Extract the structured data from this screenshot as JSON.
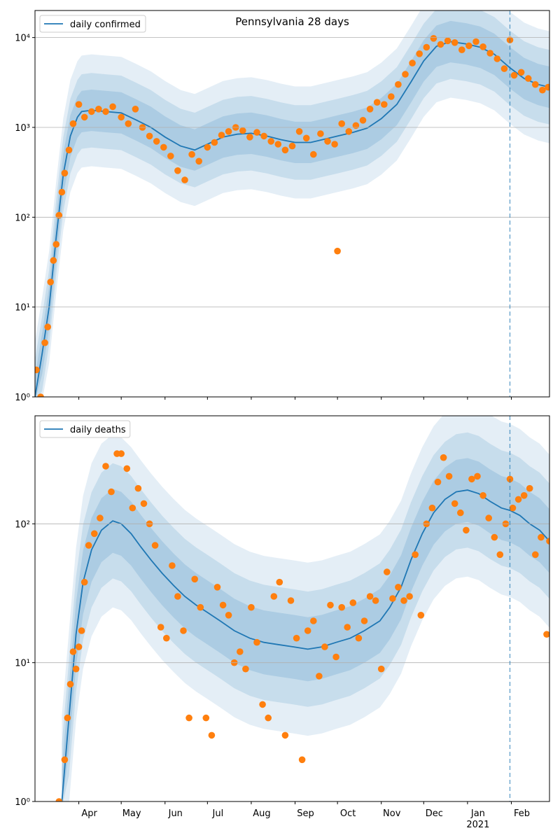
{
  "chart_data": [
    {
      "type": "scatter",
      "title": "Pennsylvania 28 days",
      "yscale": "log",
      "ylim": [
        1,
        20000
      ],
      "xlim": [
        "2020-03-01",
        "2021-02-28"
      ],
      "grid": true,
      "legend": {
        "placement": "top-left",
        "entries": [
          "daily confirmed"
        ]
      },
      "y_ticks": [
        {
          "value": 1,
          "label": "10⁰"
        },
        {
          "value": 10,
          "label": "10¹"
        },
        {
          "value": 100,
          "label": "10²"
        },
        {
          "value": 1000,
          "label": "10³"
        },
        {
          "value": 10000,
          "label": "10⁴"
        }
      ],
      "forecast_start": "2021-01-31",
      "series": [
        {
          "name": "daily confirmed",
          "kind": "line",
          "color": "#1f77b4",
          "x": [
            "2020-03-01",
            "2020-03-06",
            "2020-03-11",
            "2020-03-16",
            "2020-03-21",
            "2020-03-26",
            "2020-03-31",
            "2020-04-03",
            "2020-04-10",
            "2020-04-20",
            "2020-05-01",
            "2020-05-12",
            "2020-05-22",
            "2020-06-01",
            "2020-06-12",
            "2020-06-22",
            "2020-07-01",
            "2020-07-12",
            "2020-07-22",
            "2020-08-01",
            "2020-08-12",
            "2020-08-22",
            "2020-09-01",
            "2020-09-12",
            "2020-09-22",
            "2020-10-01",
            "2020-10-12",
            "2020-10-22",
            "2020-11-01",
            "2020-11-12",
            "2020-11-22",
            "2020-12-01",
            "2020-12-10",
            "2020-12-20",
            "2020-12-31",
            "2021-01-10",
            "2021-01-20",
            "2021-01-31",
            "2021-02-10",
            "2021-02-20",
            "2021-02-28"
          ],
          "values": [
            1,
            3,
            10,
            60,
            300,
            800,
            1300,
            1500,
            1550,
            1500,
            1450,
            1200,
            1000,
            780,
            620,
            560,
            650,
            780,
            840,
            860,
            800,
            730,
            680,
            680,
            740,
            800,
            880,
            980,
            1250,
            1800,
            3200,
            5500,
            8000,
            9000,
            8500,
            7800,
            6500,
            4600,
            3500,
            3000,
            2800
          ]
        },
        {
          "name": "daily confirmed (observed)",
          "kind": "points",
          "color": "#ff7f0e",
          "x": [
            "2020-03-02",
            "2020-03-05",
            "2020-03-08",
            "2020-03-10",
            "2020-03-12",
            "2020-03-14",
            "2020-03-16",
            "2020-03-18",
            "2020-03-20",
            "2020-03-22",
            "2020-03-25",
            "2020-03-28",
            "2020-04-01",
            "2020-04-05",
            "2020-04-10",
            "2020-04-15",
            "2020-04-20",
            "2020-04-25",
            "2020-05-01",
            "2020-05-06",
            "2020-05-11",
            "2020-05-16",
            "2020-05-21",
            "2020-05-26",
            "2020-05-31",
            "2020-06-05",
            "2020-06-10",
            "2020-06-15",
            "2020-06-20",
            "2020-06-25",
            "2020-07-01",
            "2020-07-06",
            "2020-07-11",
            "2020-07-16",
            "2020-07-21",
            "2020-07-26",
            "2020-07-31",
            "2020-08-05",
            "2020-08-10",
            "2020-08-15",
            "2020-08-20",
            "2020-08-25",
            "2020-08-30",
            "2020-09-04",
            "2020-09-09",
            "2020-09-14",
            "2020-09-19",
            "2020-09-24",
            "2020-09-29",
            "2020-10-01",
            "2020-10-04",
            "2020-10-09",
            "2020-10-14",
            "2020-10-19",
            "2020-10-24",
            "2020-10-29",
            "2020-11-03",
            "2020-11-08",
            "2020-11-13",
            "2020-11-18",
            "2020-11-23",
            "2020-11-28",
            "2020-12-03",
            "2020-12-08",
            "2020-12-13",
            "2020-12-18",
            "2020-12-23",
            "2020-12-28",
            "2021-01-02",
            "2021-01-07",
            "2021-01-12",
            "2021-01-17",
            "2021-01-22",
            "2021-01-27",
            "2021-01-31",
            "2021-02-03",
            "2021-02-08",
            "2021-02-13",
            "2021-02-18",
            "2021-02-23",
            "2021-02-27"
          ],
          "values": [
            2,
            1,
            4,
            6,
            19,
            33,
            50,
            105,
            190,
            310,
            560,
            1100,
            1800,
            1300,
            1500,
            1600,
            1500,
            1700,
            1300,
            1100,
            1600,
            1000,
            800,
            700,
            600,
            480,
            330,
            260,
            500,
            420,
            600,
            680,
            820,
            900,
            1000,
            920,
            780,
            880,
            800,
            700,
            650,
            560,
            620,
            900,
            760,
            500,
            850,
            700,
            650,
            42,
            1100,
            900,
            1050,
            1200,
            1600,
            1900,
            1800,
            2200,
            3000,
            3900,
            5200,
            6600,
            7800,
            9800,
            8400,
            9200,
            8800,
            7300,
            8100,
            9000,
            7900,
            6700,
            5800,
            4500,
            9400,
            3800,
            4100,
            3500,
            3000,
            2600,
            2800
          ]
        }
      ]
    },
    {
      "type": "scatter",
      "title": "",
      "yscale": "log",
      "ylim": [
        1,
        600
      ],
      "xlim": [
        "2020-03-01",
        "2021-02-28"
      ],
      "grid": true,
      "legend": {
        "placement": "top-left",
        "entries": [
          "daily deaths"
        ]
      },
      "y_ticks": [
        {
          "value": 1,
          "label": "10⁰"
        },
        {
          "value": 10,
          "label": "10¹"
        },
        {
          "value": 100,
          "label": "10²"
        }
      ],
      "forecast_start": "2021-01-31",
      "series": [
        {
          "name": "daily deaths",
          "kind": "line",
          "color": "#1f77b4",
          "x": [
            "2020-03-20",
            "2020-03-25",
            "2020-03-30",
            "2020-04-04",
            "2020-04-10",
            "2020-04-17",
            "2020-04-25",
            "2020-05-01",
            "2020-05-08",
            "2020-05-15",
            "2020-05-22",
            "2020-05-30",
            "2020-06-07",
            "2020-06-15",
            "2020-06-23",
            "2020-07-01",
            "2020-07-10",
            "2020-07-20",
            "2020-07-31",
            "2020-08-10",
            "2020-08-20",
            "2020-08-31",
            "2020-09-10",
            "2020-09-20",
            "2020-09-30",
            "2020-10-10",
            "2020-10-20",
            "2020-10-31",
            "2020-11-07",
            "2020-11-15",
            "2020-11-22",
            "2020-11-30",
            "2020-12-08",
            "2020-12-16",
            "2020-12-24",
            "2021-01-01",
            "2021-01-09",
            "2021-01-17",
            "2021-01-25",
            "2021-01-31",
            "2021-02-07",
            "2021-02-14",
            "2021-02-21",
            "2021-02-28"
          ],
          "values": [
            1,
            4,
            16,
            38,
            65,
            90,
            105,
            100,
            85,
            68,
            55,
            44,
            36,
            30,
            26,
            23,
            20,
            17,
            15,
            14,
            13.5,
            13,
            12.5,
            13,
            14,
            15,
            17,
            20,
            25,
            35,
            55,
            85,
            120,
            150,
            170,
            175,
            165,
            145,
            130,
            125,
            115,
            100,
            90,
            75
          ]
        },
        {
          "name": "daily deaths (observed)",
          "kind": "points",
          "color": "#ff7f0e",
          "x": [
            "2020-03-18",
            "2020-03-22",
            "2020-03-24",
            "2020-03-26",
            "2020-03-28",
            "2020-03-30",
            "2020-04-01",
            "2020-04-03",
            "2020-04-05",
            "2020-04-08",
            "2020-04-12",
            "2020-04-16",
            "2020-04-20",
            "2020-04-24",
            "2020-04-28",
            "2020-05-01",
            "2020-05-05",
            "2020-05-09",
            "2020-05-13",
            "2020-05-17",
            "2020-05-21",
            "2020-05-25",
            "2020-05-29",
            "2020-06-02",
            "2020-06-06",
            "2020-06-10",
            "2020-06-14",
            "2020-06-18",
            "2020-06-22",
            "2020-06-26",
            "2020-06-30",
            "2020-07-04",
            "2020-07-08",
            "2020-07-12",
            "2020-07-16",
            "2020-07-20",
            "2020-07-24",
            "2020-07-28",
            "2020-08-01",
            "2020-08-05",
            "2020-08-09",
            "2020-08-13",
            "2020-08-17",
            "2020-08-21",
            "2020-08-25",
            "2020-08-29",
            "2020-09-02",
            "2020-09-06",
            "2020-09-10",
            "2020-09-14",
            "2020-09-18",
            "2020-09-22",
            "2020-09-26",
            "2020-09-30",
            "2020-10-04",
            "2020-10-08",
            "2020-10-12",
            "2020-10-16",
            "2020-10-20",
            "2020-10-24",
            "2020-10-28",
            "2020-11-01",
            "2020-11-05",
            "2020-11-09",
            "2020-11-13",
            "2020-11-17",
            "2020-11-21",
            "2020-11-25",
            "2020-11-29",
            "2020-12-03",
            "2020-12-07",
            "2020-12-11",
            "2020-12-15",
            "2020-12-19",
            "2020-12-23",
            "2020-12-27",
            "2020-12-31",
            "2021-01-04",
            "2021-01-08",
            "2021-01-12",
            "2021-01-16",
            "2021-01-20",
            "2021-01-24",
            "2021-01-28",
            "2021-01-31",
            "2021-02-02",
            "2021-02-06",
            "2021-02-10",
            "2021-02-14",
            "2021-02-18",
            "2021-02-22",
            "2021-02-26",
            "2021-02-28"
          ],
          "values": [
            1,
            2,
            4,
            7,
            12,
            9,
            13,
            17,
            38,
            70,
            85,
            110,
            260,
            170,
            320,
            320,
            250,
            130,
            180,
            140,
            100,
            70,
            18,
            15,
            50,
            30,
            17,
            4,
            40,
            25,
            4,
            3,
            35,
            26,
            22,
            10,
            12,
            9,
            25,
            14,
            5,
            4,
            30,
            38,
            3,
            28,
            15,
            2,
            17,
            20,
            8,
            13,
            26,
            11,
            25,
            18,
            27,
            15,
            20,
            30,
            28,
            9,
            45,
            29,
            35,
            28,
            30,
            60,
            22,
            100,
            130,
            200,
            300,
            220,
            140,
            120,
            90,
            210,
            220,
            160,
            110,
            80,
            60,
            100,
            210,
            130,
            150,
            160,
            180,
            60,
            80,
            16,
            75
          ]
        }
      ]
    }
  ],
  "x_axis": {
    "month_labels": [
      {
        "date": "2020-04-01",
        "label": "Apr"
      },
      {
        "date": "2020-05-01",
        "label": "May"
      },
      {
        "date": "2020-06-01",
        "label": "Jun"
      },
      {
        "date": "2020-07-01",
        "label": "Jul"
      },
      {
        "date": "2020-08-01",
        "label": "Aug"
      },
      {
        "date": "2020-09-01",
        "label": "Sep"
      },
      {
        "date": "2020-10-01",
        "label": "Oct"
      },
      {
        "date": "2020-11-01",
        "label": "Nov"
      },
      {
        "date": "2020-12-01",
        "label": "Dec"
      },
      {
        "date": "2021-01-01",
        "label": "Jan"
      },
      {
        "date": "2021-02-01",
        "label": "Feb"
      }
    ],
    "year_label": "2021"
  }
}
